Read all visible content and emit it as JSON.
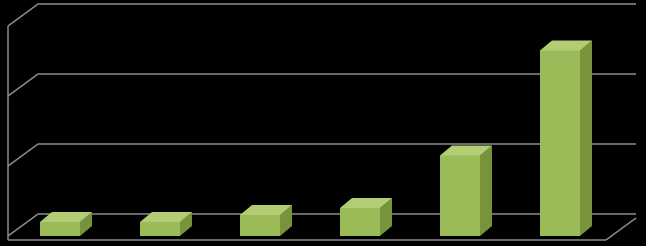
{
  "chart_data": {
    "type": "bar3d",
    "values": [
      0.2,
      0.2,
      0.3,
      0.4,
      1.15,
      2.65
    ],
    "color": "#9bbb59",
    "side_color": "#77933c",
    "top_color": "#b2cd74",
    "ylim": [
      0,
      3
    ],
    "yticks": [
      0,
      1,
      2,
      3
    ],
    "grid": true
  }
}
